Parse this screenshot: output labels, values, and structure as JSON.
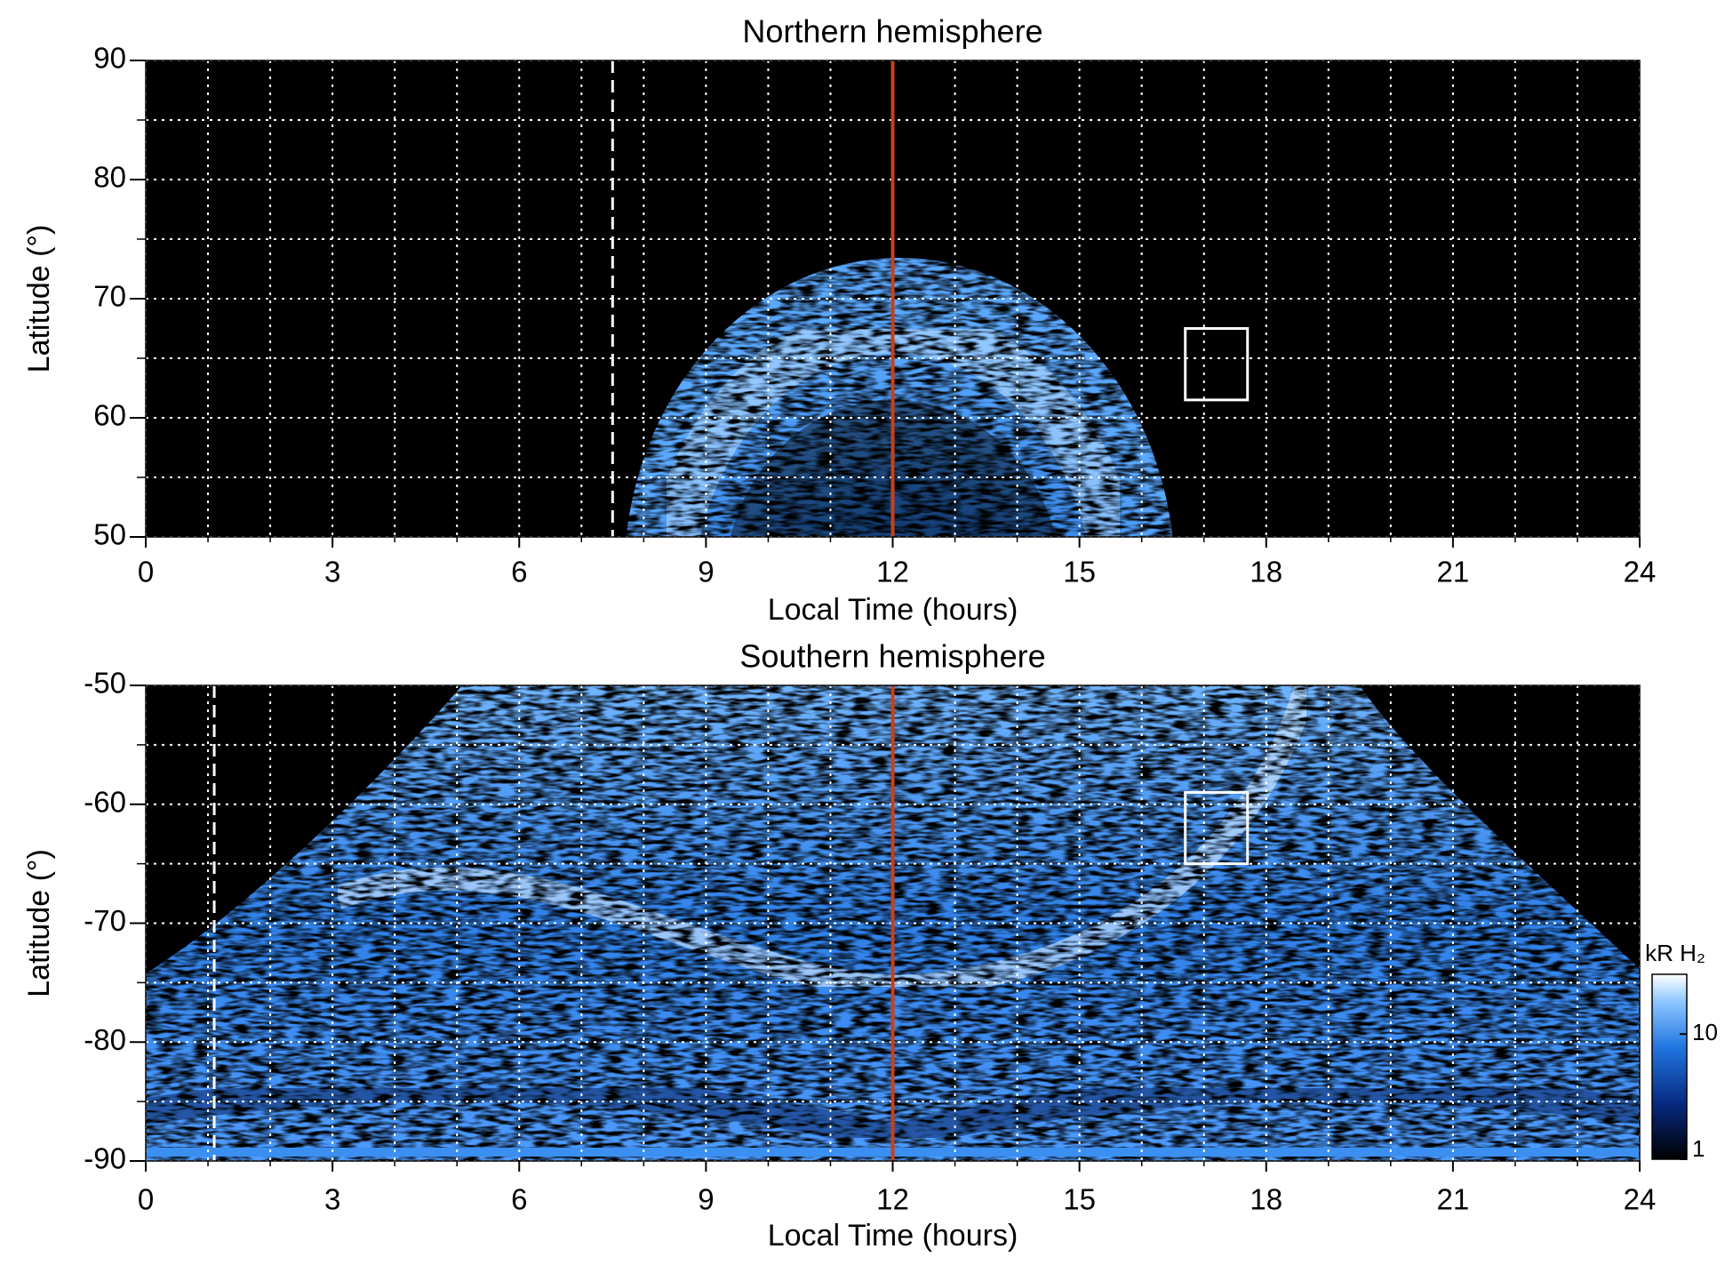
{
  "chart_data": [
    {
      "type": "heatmap",
      "title": "Northern hemisphere",
      "xlabel": "Local Time (hours)",
      "ylabel": "Latitude (°)",
      "xlim": [
        0,
        24
      ],
      "xticks": [
        0,
        3,
        6,
        9,
        12,
        15,
        18,
        21,
        24
      ],
      "xgrid": [
        1,
        2,
        4,
        5,
        7,
        8,
        10,
        11,
        13,
        14,
        16,
        17,
        19,
        20,
        22,
        23
      ],
      "ylim": [
        50,
        90
      ],
      "yticks": [
        50,
        60,
        70,
        80,
        90
      ],
      "ygrid": [
        55,
        65,
        75,
        85
      ],
      "grid": true,
      "vlines": [
        {
          "x": 12,
          "color": "#c8401a",
          "style": "solid"
        },
        {
          "x": 7.5,
          "color": "#ffffff",
          "style": "dashed"
        }
      ],
      "boxes": [
        {
          "x": [
            16.7,
            17.7
          ],
          "y": [
            61.5,
            67.5
          ],
          "color": "#ffffff"
        }
      ]
    },
    {
      "type": "heatmap",
      "title": "Southern hemisphere",
      "xlabel": "Local Time (hours)",
      "ylabel": "Latitude (°)",
      "xlim": [
        0,
        24
      ],
      "xticks": [
        0,
        3,
        6,
        9,
        12,
        15,
        18,
        21,
        24
      ],
      "xgrid": [
        1,
        2,
        4,
        5,
        7,
        8,
        10,
        11,
        13,
        14,
        16,
        17,
        19,
        20,
        22,
        23
      ],
      "ylim": [
        -90,
        -50
      ],
      "yticks": [
        -90,
        -80,
        -70,
        -60,
        -50
      ],
      "ygrid": [
        -85,
        -75,
        -65,
        -55
      ],
      "grid": true,
      "vlines": [
        {
          "x": 12,
          "color": "#c8401a",
          "style": "solid"
        },
        {
          "x": 1.1,
          "color": "#ffffff",
          "style": "dashed"
        }
      ],
      "boxes": [
        {
          "x": [
            16.7,
            17.7
          ],
          "y": [
            -65,
            -59
          ],
          "color": "#ffffff"
        }
      ],
      "colorbar": {
        "label": "kR H₂",
        "lim": [
          1,
          30
        ],
        "ticks": [
          1,
          10
        ],
        "log": true
      }
    }
  ]
}
